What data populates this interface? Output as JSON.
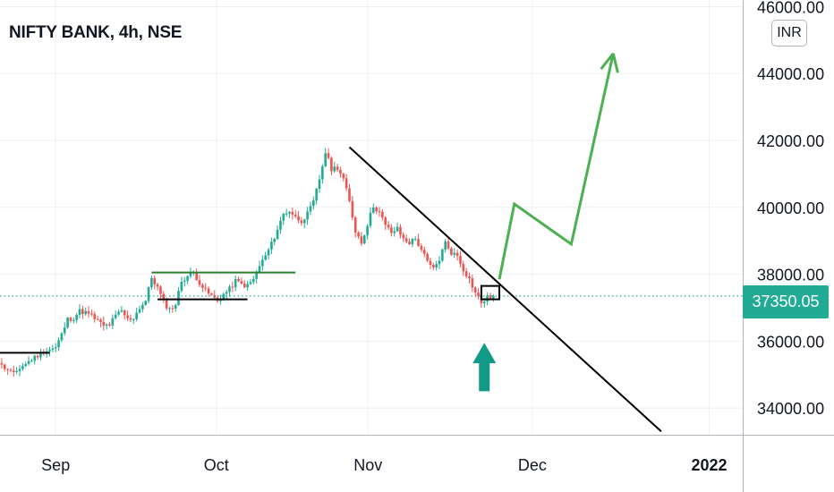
{
  "header": {
    "title": "NIFTY BANK, 4h, NSE",
    "currency_label": "INR"
  },
  "price_badge": {
    "value": "37350.05",
    "color": "#22ab94"
  },
  "colors": {
    "up": "#22ab94",
    "down": "#ef5350",
    "projection": "#4caf50",
    "trend": "#000000",
    "grid": "#eef0f3"
  },
  "chart_data": {
    "type": "candlestick",
    "symbol": "NIFTY BANK",
    "interval": "4h",
    "exchange": "NSE",
    "currency": "INR",
    "last_price": 37350.05,
    "ylim": [
      33200,
      46200
    ],
    "y_ticks": [
      "34000.00",
      "36000.00",
      "38000.00",
      "40000.00",
      "42000.00",
      "44000.00",
      "46000.00"
    ],
    "x_ticks": [
      {
        "label": "Sep",
        "t": 6.0
      },
      {
        "label": "Oct",
        "t": 32.8
      },
      {
        "label": "Nov",
        "t": 58.1
      },
      {
        "label": "Dec",
        "t": 85.5
      },
      {
        "label": "2022",
        "t": 115.0
      }
    ],
    "close_path": [
      [
        -7,
        35600
      ],
      [
        -5,
        35700
      ],
      [
        -3,
        35250
      ],
      [
        -1,
        35000
      ],
      [
        0,
        35200
      ],
      [
        2,
        35450
      ],
      [
        4,
        35700
      ],
      [
        6,
        35800
      ],
      [
        7,
        36200
      ],
      [
        8,
        36650
      ],
      [
        9,
        36700
      ],
      [
        10,
        36900
      ],
      [
        11,
        36850
      ],
      [
        12,
        36750
      ],
      [
        13,
        36600
      ],
      [
        14,
        36450
      ],
      [
        15,
        36500
      ],
      [
        16,
        36750
      ],
      [
        17,
        36900
      ],
      [
        18,
        36650
      ],
      [
        19,
        36700
      ],
      [
        20,
        37000
      ],
      [
        21,
        37200
      ],
      [
        22,
        37900
      ],
      [
        23,
        37600
      ],
      [
        24,
        37150
      ],
      [
        25,
        36950
      ],
      [
        26,
        37100
      ],
      [
        27,
        37800
      ],
      [
        28,
        37950
      ],
      [
        29,
        38050
      ],
      [
        30,
        37750
      ],
      [
        31,
        37500
      ],
      [
        32,
        37350
      ],
      [
        33,
        37200
      ],
      [
        34,
        37400
      ],
      [
        35,
        37550
      ],
      [
        36,
        37800
      ],
      [
        37,
        37700
      ],
      [
        38,
        37650
      ],
      [
        39,
        37850
      ],
      [
        40,
        38250
      ],
      [
        41,
        38550
      ],
      [
        42,
        38900
      ],
      [
        43,
        39350
      ],
      [
        44,
        39800
      ],
      [
        45,
        39900
      ],
      [
        46,
        39700
      ],
      [
        47,
        39600
      ],
      [
        48,
        39800
      ],
      [
        49,
        40150
      ],
      [
        50,
        40850
      ],
      [
        51,
        41650
      ],
      [
        52,
        41150
      ],
      [
        53,
        41200
      ],
      [
        54,
        40850
      ],
      [
        55,
        40150
      ],
      [
        56,
        39300
      ],
      [
        57,
        38950
      ],
      [
        58,
        39500
      ],
      [
        59,
        40050
      ],
      [
        60,
        39850
      ],
      [
        61,
        39450
      ],
      [
        62,
        39250
      ],
      [
        63,
        39350
      ],
      [
        64,
        39050
      ],
      [
        65,
        38950
      ],
      [
        66,
        39050
      ],
      [
        67,
        38750
      ],
      [
        68,
        38350
      ],
      [
        69,
        38150
      ],
      [
        70,
        38450
      ],
      [
        71,
        38950
      ],
      [
        72,
        38650
      ],
      [
        73,
        38550
      ],
      [
        74,
        38150
      ],
      [
        75,
        37850
      ],
      [
        76,
        37450
      ],
      [
        77,
        37150
      ],
      [
        78,
        37300
      ],
      [
        79,
        37350
      ]
    ],
    "annotations": [
      {
        "kind": "trendline",
        "points": [
          [
            55,
            41800
          ],
          [
            107,
            33300
          ]
        ]
      },
      {
        "kind": "hline",
        "price": 38050,
        "t_range": [
          22,
          46
        ]
      },
      {
        "kind": "hline",
        "price": 37250,
        "t_range": [
          23,
          38
        ]
      },
      {
        "kind": "hline",
        "price": 35650,
        "t_range": [
          -7,
          5
        ]
      },
      {
        "kind": "hline",
        "price": 36200,
        "t_range": [
          -7,
          -5
        ]
      },
      {
        "kind": "rectangle",
        "t_range": [
          77,
          80
        ],
        "price_range": [
          37250,
          37650
        ]
      },
      {
        "kind": "projection",
        "points": [
          [
            80,
            37850
          ],
          [
            82.5,
            40100
          ],
          [
            92,
            38900
          ],
          [
            99,
            44600
          ]
        ]
      },
      {
        "kind": "arrow-up",
        "t": 77.5,
        "price_range": [
          34500,
          35950
        ]
      }
    ]
  }
}
